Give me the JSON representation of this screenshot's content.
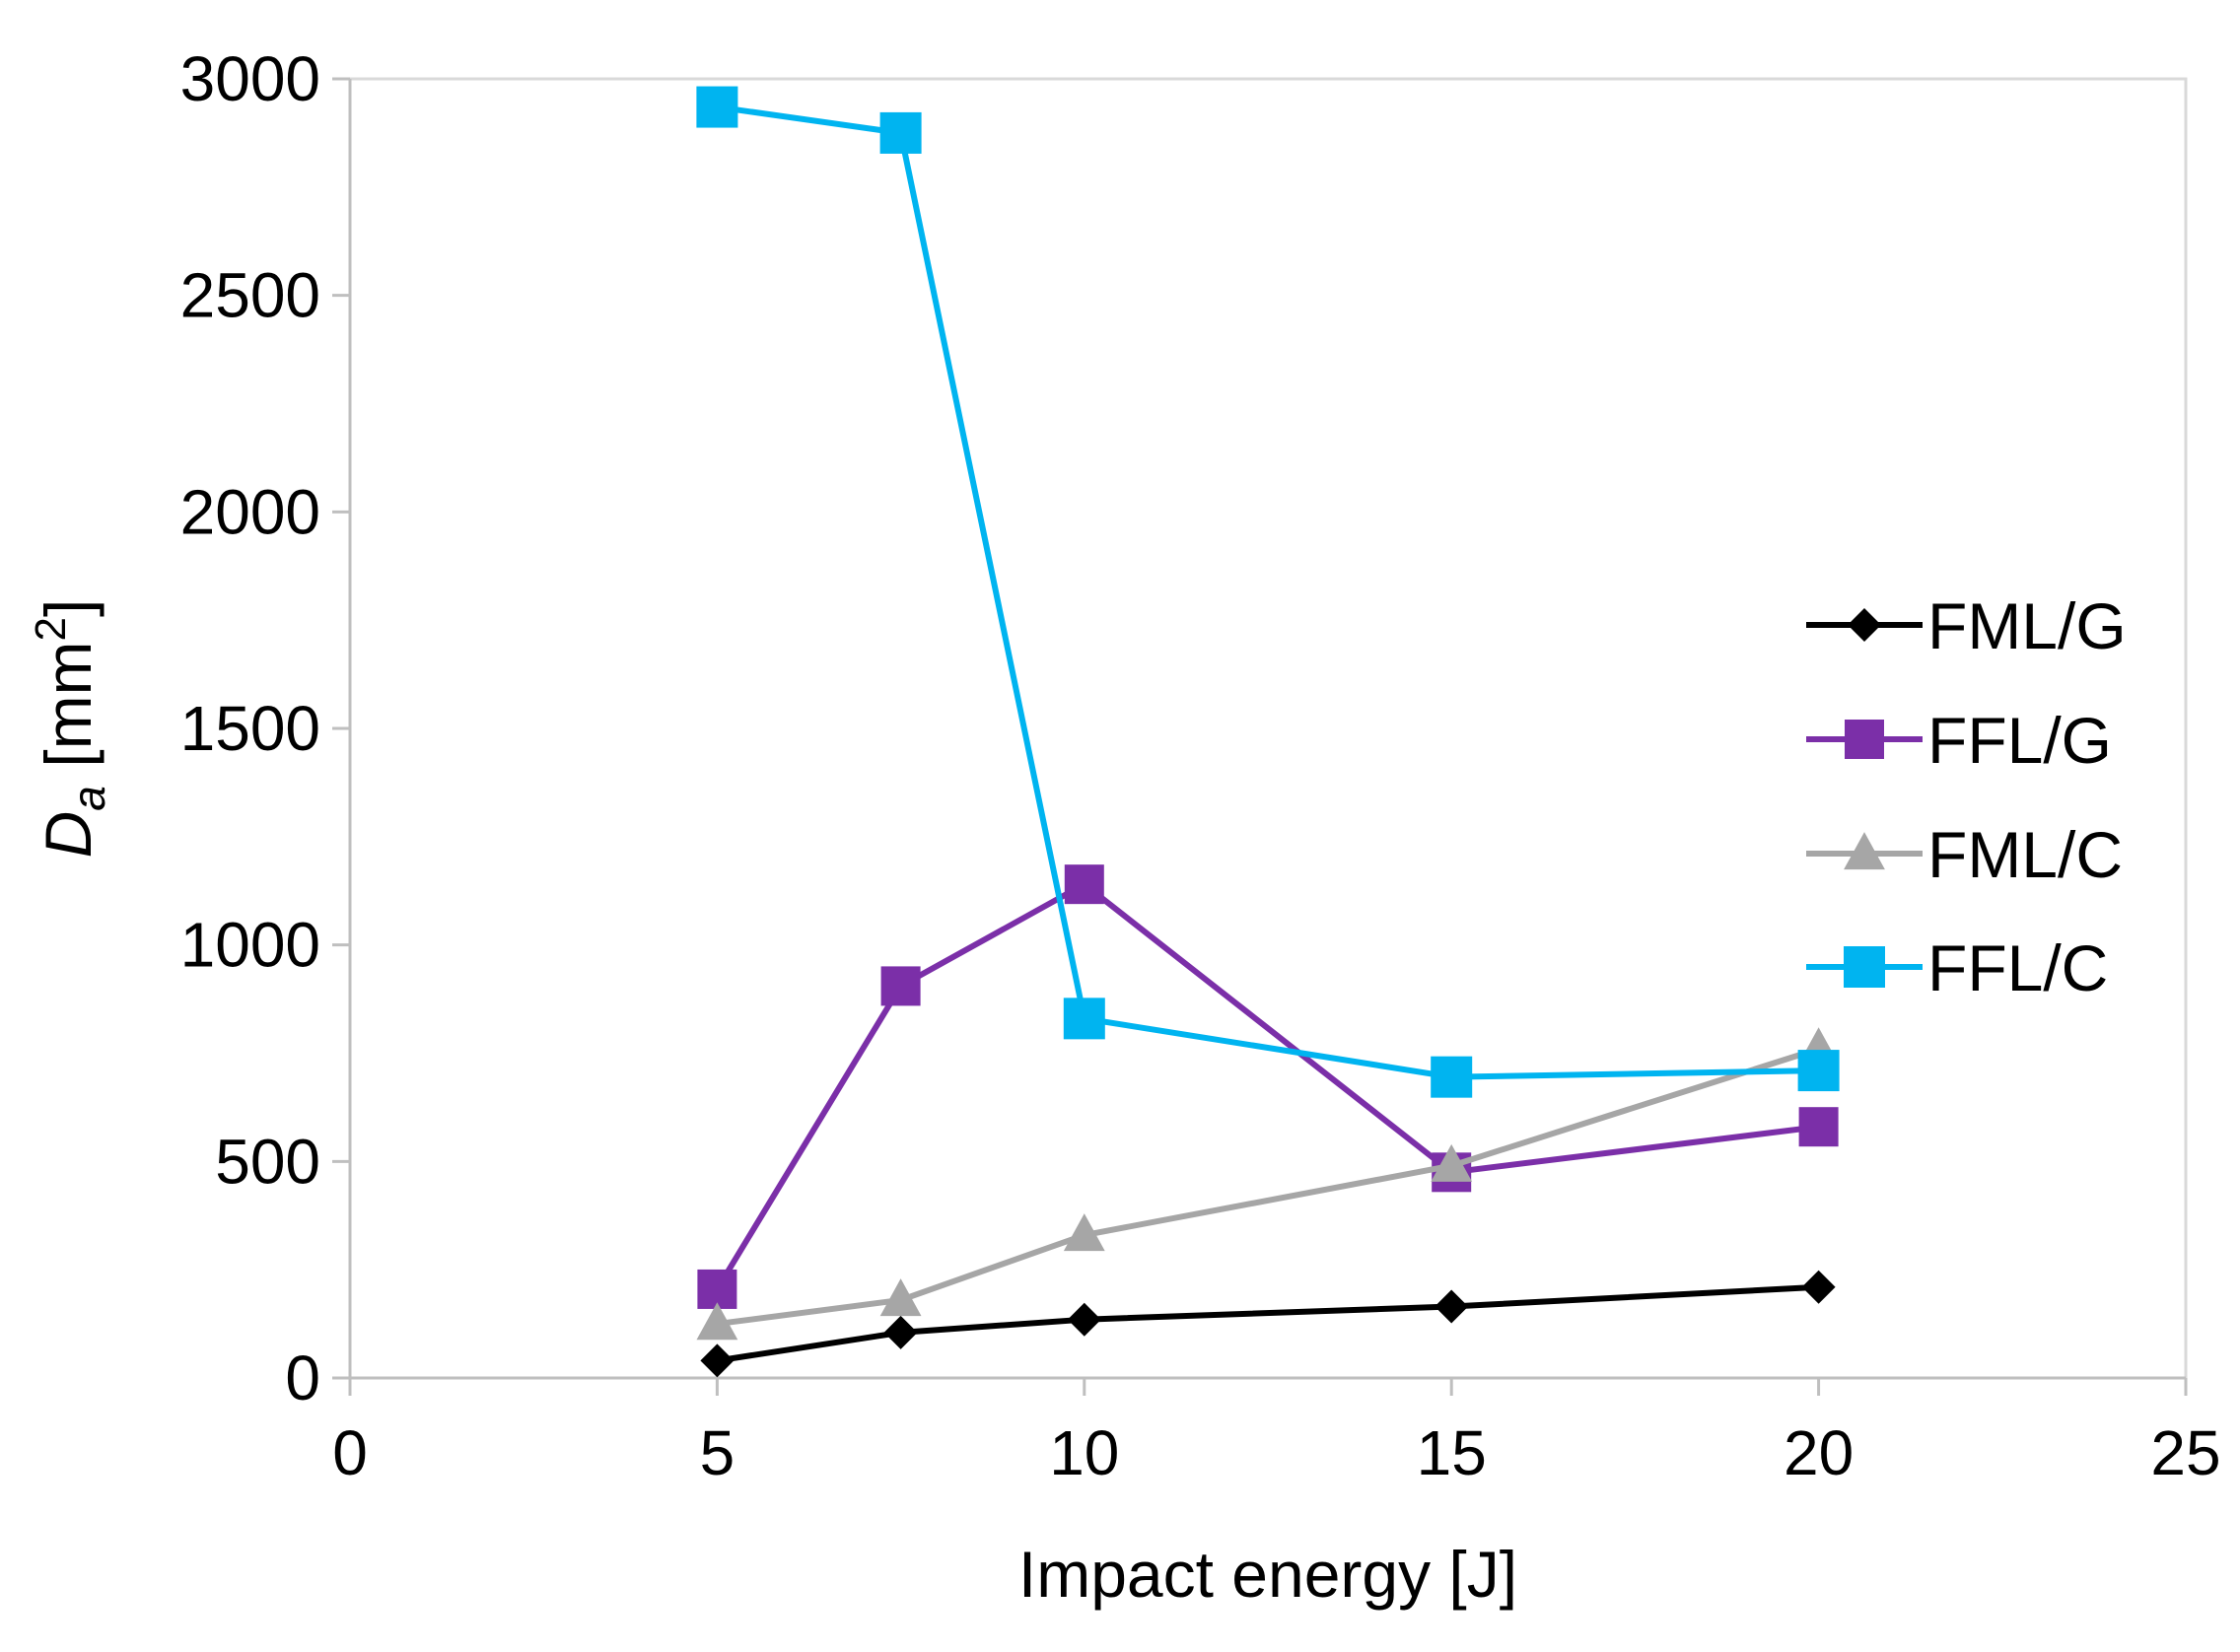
{
  "chart_data": {
    "type": "line",
    "title": "",
    "xlabel": "Impact energy [J]",
    "ylabel": {
      "symbol": "D",
      "subscript": "a",
      "unit_open": " [mm",
      "unit_power": "2",
      "unit_close": "]"
    },
    "xlim": [
      0,
      25
    ],
    "ylim": [
      0,
      3000
    ],
    "x_ticks": [
      "0",
      "5",
      "10",
      "15",
      "20",
      "25"
    ],
    "y_ticks": [
      "0",
      "500",
      "1000",
      "1500",
      "2000",
      "2500",
      "3000"
    ],
    "grid": false,
    "legend_position": "right",
    "series": [
      {
        "name": "FML/G",
        "marker": "diamond",
        "color": "#000000",
        "x": [
          5,
          7.5,
          10,
          15,
          20
        ],
        "values": [
          40,
          105,
          135,
          165,
          210
        ]
      },
      {
        "name": "FFL/G",
        "marker": "square",
        "color": "#7B2FA8",
        "x": [
          5,
          7.5,
          10,
          15,
          20
        ],
        "values": [
          205,
          905,
          1140,
          475,
          580
        ]
      },
      {
        "name": "FML/C",
        "marker": "triangle",
        "color": "#A6A6A6",
        "x": [
          5,
          7.5,
          10,
          15,
          20
        ],
        "values": [
          125,
          180,
          330,
          490,
          760
        ]
      },
      {
        "name": "FFL/C",
        "marker": "square",
        "color": "#00B4F0",
        "x": [
          5,
          7.5,
          10,
          15,
          20
        ],
        "values": [
          2935,
          2875,
          830,
          695,
          710
        ]
      }
    ]
  }
}
